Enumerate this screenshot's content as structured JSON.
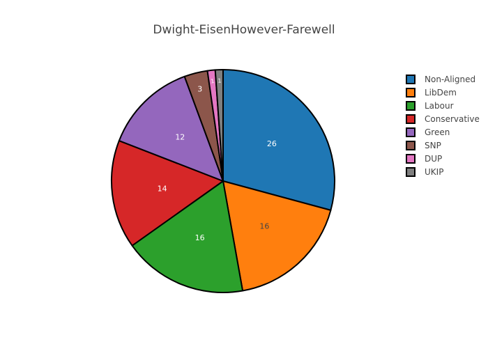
{
  "chart_data": {
    "type": "pie",
    "title": "Dwight-EisenHowever-Farewell",
    "legend_position": "right",
    "start_direction": "clockwise from top",
    "slices": [
      {
        "label": "Non-Aligned",
        "value": 26,
        "color": "#1f77b4",
        "text_color": "#ffffff"
      },
      {
        "label": "LibDem",
        "value": 16,
        "color": "#ff7f0e",
        "text_color": "#444444"
      },
      {
        "label": "Labour",
        "value": 16,
        "color": "#2ca02c",
        "text_color": "#ffffff"
      },
      {
        "label": "Conservative",
        "value": 14,
        "color": "#d62728",
        "text_color": "#ffffff"
      },
      {
        "label": "Green",
        "value": 12,
        "color": "#9467bd",
        "text_color": "#ffffff"
      },
      {
        "label": "SNP",
        "value": 3,
        "color": "#8c564b",
        "text_color": "#ffffff"
      },
      {
        "label": "DUP",
        "value": 1,
        "color": "#e377c2",
        "text_color": "#ffffff"
      },
      {
        "label": "UKIP",
        "value": 1,
        "color": "#7f7f7f",
        "text_color": "#ffffff"
      }
    ]
  }
}
